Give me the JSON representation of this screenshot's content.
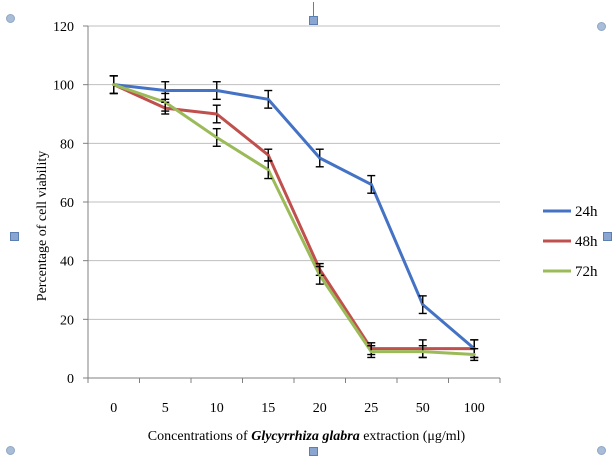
{
  "chart_data": {
    "type": "line",
    "categories": [
      "0",
      "5",
      "10",
      "15",
      "20",
      "25",
      "50",
      "100"
    ],
    "ylim": [
      0,
      120
    ],
    "yticks": [
      0,
      20,
      40,
      60,
      80,
      100,
      120
    ],
    "ylabel": "Percentage of cell viability",
    "xlabel_prefix": "Concentrations of ",
    "xlabel_italic": "Glycyrrhiza glabra",
    "xlabel_suffix": " extraction (μg/ml)",
    "grid": true,
    "legend": "right",
    "series": [
      {
        "name": "24h",
        "color": "#4472C4",
        "values": [
          100,
          98,
          98,
          95,
          75,
          66,
          25,
          10
        ],
        "errors": [
          3,
          3,
          3,
          3,
          3,
          3,
          3,
          3
        ]
      },
      {
        "name": "48h",
        "color": "#C0504D",
        "values": [
          100,
          92,
          90,
          76,
          37,
          10,
          10,
          10
        ],
        "errors": [
          3,
          2,
          3,
          2,
          2,
          2,
          3,
          3
        ]
      },
      {
        "name": "72h",
        "color": "#9BBB59",
        "values": [
          100,
          94,
          82,
          71,
          35,
          9,
          9,
          8
        ],
        "errors": [
          3,
          3,
          3,
          3,
          3,
          2,
          2,
          2
        ]
      }
    ]
  }
}
